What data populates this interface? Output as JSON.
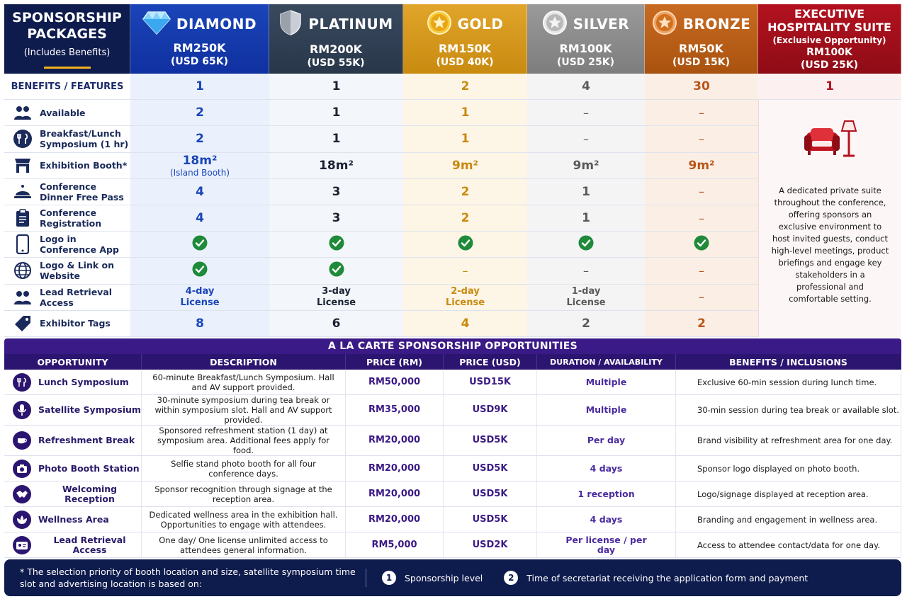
{
  "header": {
    "title_line1": "SPONSORSHIP",
    "title_line2": "PACKAGES",
    "subtitle": "(Includes Benefits)"
  },
  "tiers": [
    {
      "name": "DIAMOND",
      "price_rm": "RM250K",
      "price_usd": "(USD 65K)",
      "icon": "diamond-icon",
      "color": "#1a45b8"
    },
    {
      "name": "PLATINUM",
      "price_rm": "RM200K",
      "price_usd": "(USD 55K)",
      "icon": "shield-icon",
      "color": "#3a4a5e"
    },
    {
      "name": "GOLD",
      "price_rm": "RM150K",
      "price_usd": "(USD 40K)",
      "icon": "star-medal-icon",
      "color": "#e0a52a"
    },
    {
      "name": "SILVER",
      "price_rm": "RM100K",
      "price_usd": "(USD 25K)",
      "icon": "star-medal-icon",
      "color": "#9a9a9a"
    },
    {
      "name": "BRONZE",
      "price_rm": "RM50K",
      "price_usd": "(USD 15K)",
      "icon": "star-medal-icon",
      "color": "#c86b22"
    }
  ],
  "executive": {
    "title_line1": "EXECUTIVE",
    "title_line2": "HOSPITALITY SUITE",
    "subtitle": "(Exclusive Opportunity)",
    "price_rm": "RM100K",
    "price_usd": "(USD 25K)",
    "count": "1",
    "icon": "lounge-sofa-lamp-icon",
    "description": "A dedicated private suite throughout the conference, offering sponsors an exclusive environment to host invited guests, conduct high-level meetings, product briefings and engage key stakeholders in a professional and comfortable setting."
  },
  "benefits_header": "BENEFITS / FEATURES",
  "tier_counts": [
    "1",
    "1",
    "2",
    "4",
    "30"
  ],
  "benefits": [
    {
      "label": "Available",
      "icon": "people-icon",
      "values": [
        "2",
        "1",
        "1",
        "–",
        "–"
      ]
    },
    {
      "label": "Breakfast/Lunch Symposium (1 hr)",
      "icon": "fork-knife-icon",
      "values": [
        "2",
        "1",
        "1",
        "–",
        "–"
      ]
    },
    {
      "label": "Exhibition Booth*",
      "icon": "booth-icon",
      "values": [
        "18m²",
        "18m²",
        "9m²",
        "9m²",
        "9m²"
      ],
      "diamond_note": "(Island Booth)"
    },
    {
      "label": "Conference Dinner Free Pass",
      "icon": "cloche-icon",
      "values": [
        "4",
        "3",
        "2",
        "1",
        "–"
      ]
    },
    {
      "label": "Conference Registration",
      "icon": "clipboard-icon",
      "values": [
        "4",
        "3",
        "2",
        "1",
        "–"
      ]
    },
    {
      "label": "Logo in Conference App",
      "icon": "phone-icon",
      "values": [
        "check",
        "check",
        "check",
        "check",
        "check"
      ]
    },
    {
      "label": "Logo & Link on Website",
      "icon": "globe-icon",
      "values": [
        "check",
        "check",
        "–",
        "–",
        "–"
      ]
    },
    {
      "label": "Lead Retrieval Access",
      "icon": "people-icon",
      "values": [
        "4-day License",
        "3-day License",
        "2-day License",
        "1-day License",
        "–"
      ]
    },
    {
      "label": "Exhibitor Tags",
      "icon": "tag-icon",
      "values": [
        "8",
        "6",
        "4",
        "2",
        "2"
      ]
    }
  ],
  "alacarte": {
    "title": "A LA CARTE SPONSORSHIP OPPORTUNITIES",
    "columns": [
      "OPPORTUNITY",
      "DESCRIPTION",
      "PRICE (RM)",
      "PRICE (USD)",
      "DURATION / AVAILABILITY",
      "BENEFITS / INCLUSIONS"
    ],
    "rows": [
      {
        "name": "Lunch Symposium",
        "icon": "fork-knife-icon",
        "description": "60-minute Breakfast/Lunch Symposium. Hall and AV support provided.",
        "price_rm": "RM50,000",
        "price_usd": "USD15K",
        "duration": "Multiple",
        "benefits": "Exclusive 60-min session during lunch time."
      },
      {
        "name": "Satellite Symposium",
        "icon": "microphone-icon",
        "description": "30-minute symposium during tea break or within symposium slot. Hall and AV support provided.",
        "price_rm": "RM35,000",
        "price_usd": "USD9K",
        "duration": "Multiple",
        "benefits": "30-min session during tea break or available slot."
      },
      {
        "name": "Refreshment Break",
        "icon": "coffee-cup-icon",
        "description": "Sponsored refreshment station (1 day) at symposium area. Additional fees apply for food.",
        "price_rm": "RM20,000",
        "price_usd": "USD5K",
        "duration": "Per day",
        "benefits": "Brand visibility at refreshment area for one day."
      },
      {
        "name": "Photo Booth Station",
        "icon": "camera-icon",
        "description": "Selfie stand photo booth for all four conference days.",
        "price_rm": "RM20,000",
        "price_usd": "USD5K",
        "duration": "4 days",
        "benefits": "Sponsor logo displayed on photo booth."
      },
      {
        "name": "Welcoming Reception",
        "icon": "handshake-icon",
        "description": "Sponsor recognition through signage at the reception area.",
        "price_rm": "RM20,000",
        "price_usd": "USD5K",
        "duration": "1 reception",
        "benefits": "Logo/signage displayed at reception area."
      },
      {
        "name": "Wellness Area",
        "icon": "lotus-icon",
        "description": "Dedicated wellness area in the exhibition hall. Opportunities to engage with attendees.",
        "price_rm": "RM20,000",
        "price_usd": "USD5K",
        "duration": "4 days",
        "benefits": "Branding and engagement in wellness area."
      },
      {
        "name": "Lead Retrieval Access",
        "icon": "id-card-icon",
        "description": "One day/ One license unlimited access to attendees general information.",
        "price_rm": "RM5,000",
        "price_usd": "USD2K",
        "duration": "Per license / per day",
        "benefits": "Access to attendee contact/data for one day."
      }
    ]
  },
  "footer": {
    "note": "* The selection priority of booth location and size, satellite symposium time slot and advertising location is based on:",
    "items": [
      {
        "num": "1",
        "text": "Sponsorship level"
      },
      {
        "num": "2",
        "text": "Time of secretariat receiving the application form and payment"
      }
    ]
  }
}
